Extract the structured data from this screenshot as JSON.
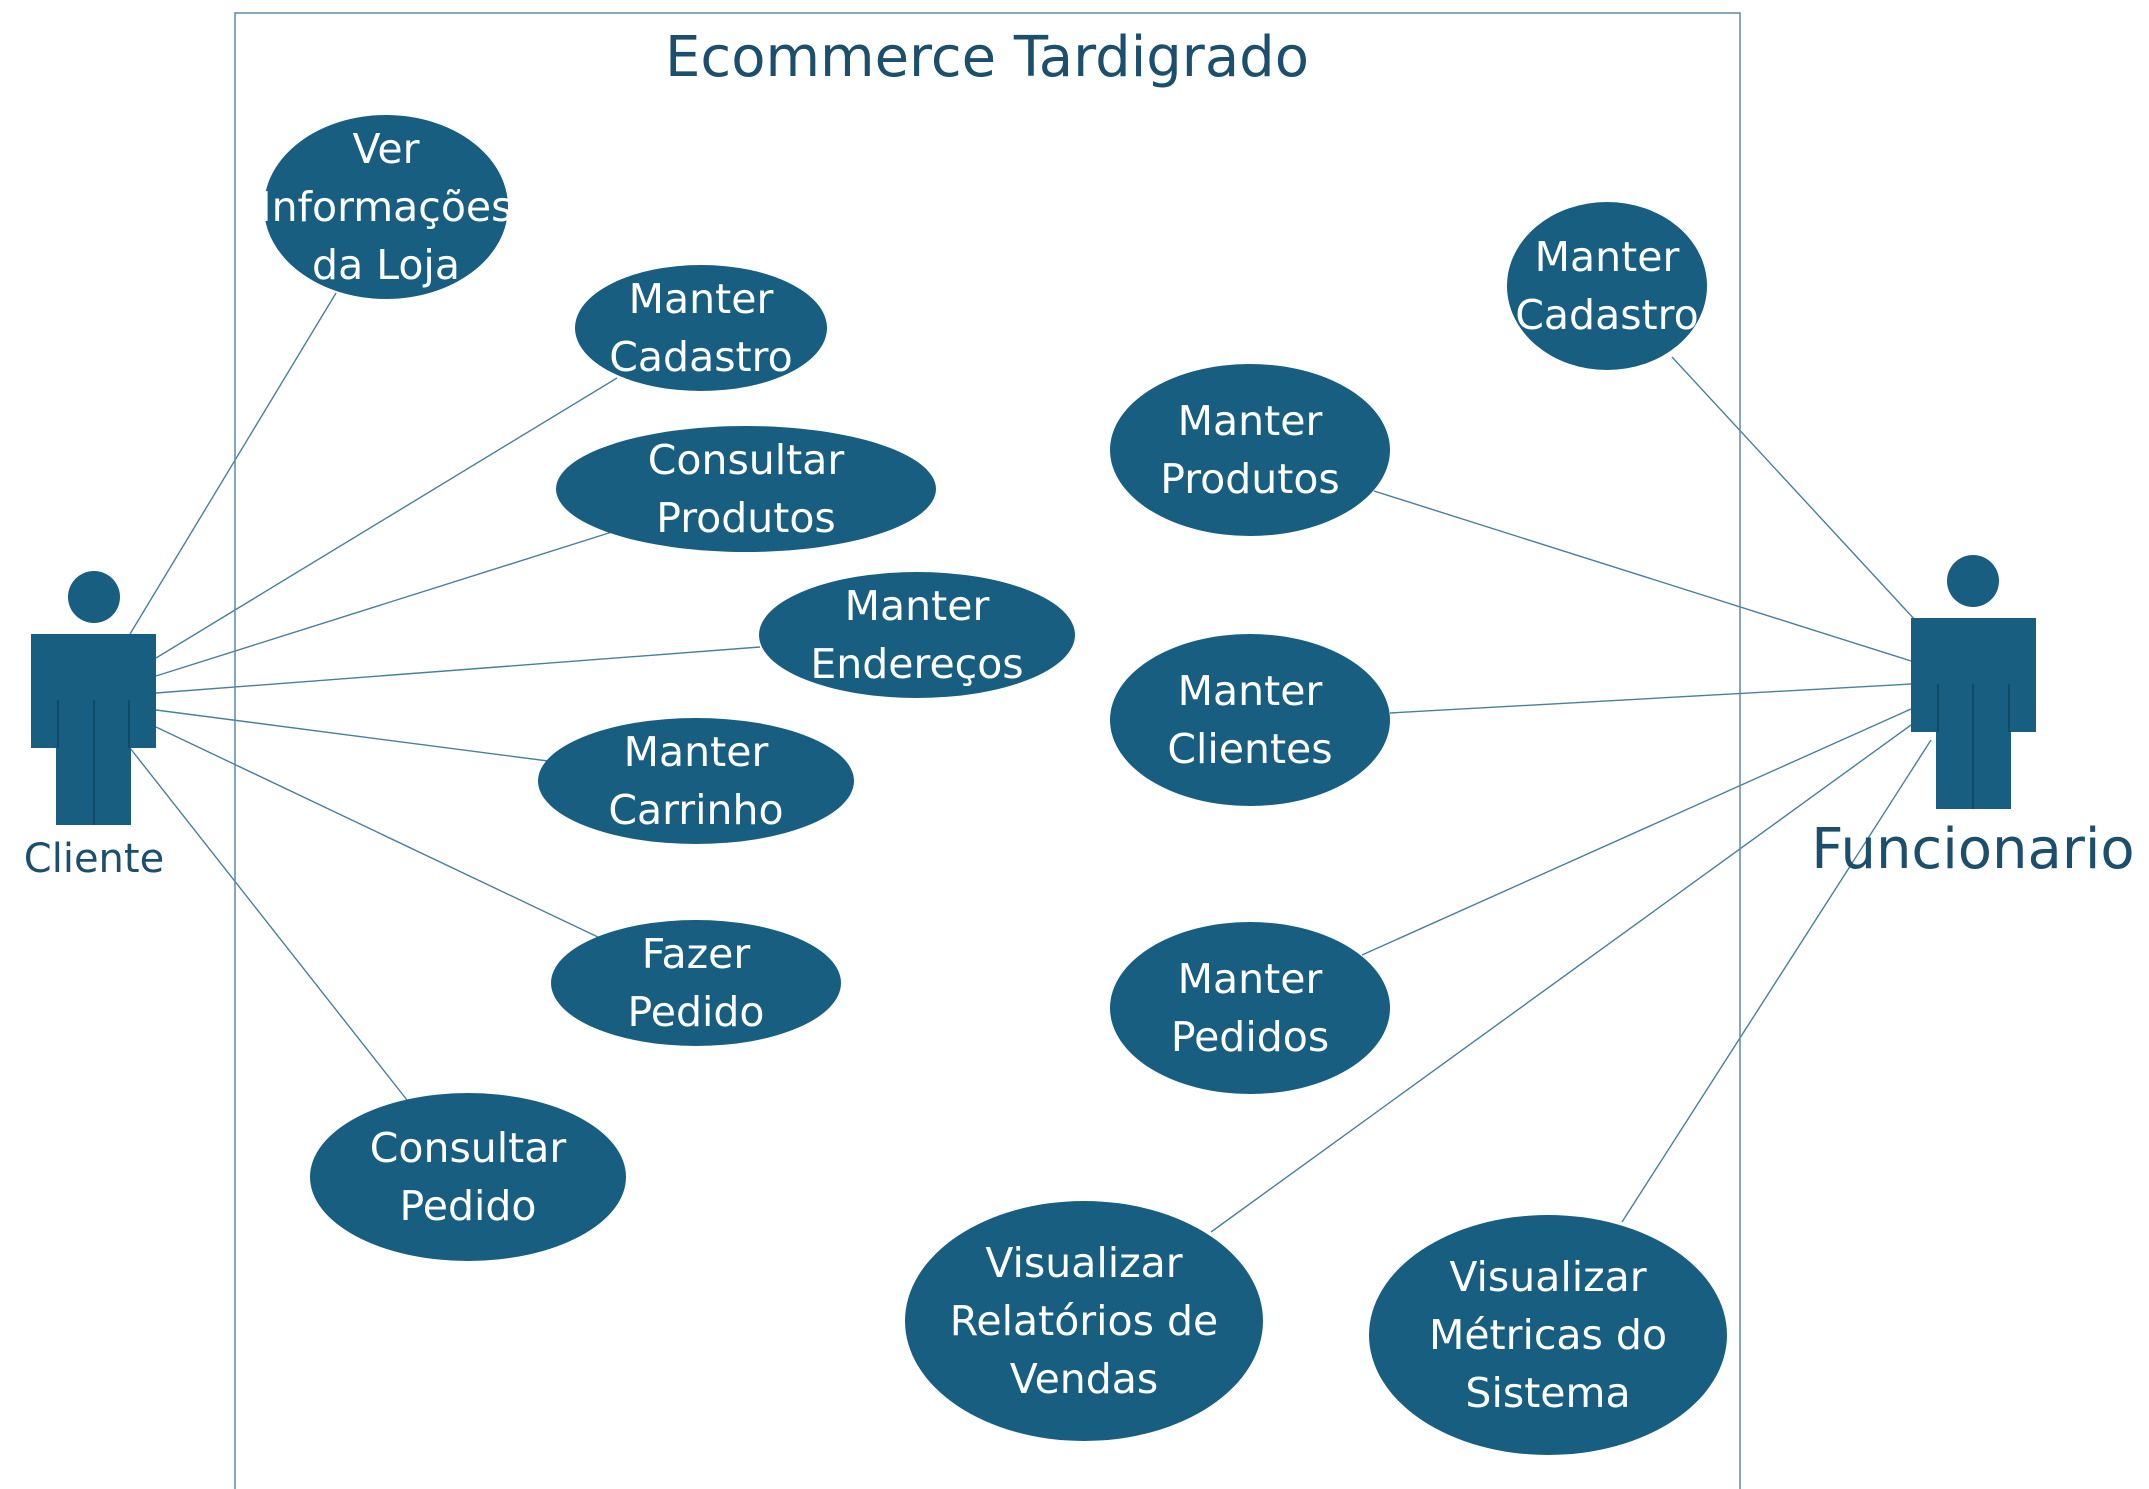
{
  "colors": {
    "fill": "#185e80",
    "line": "#4a7f9c",
    "text": "#1b4f6b",
    "boundary": "#5b8aa5"
  },
  "system": {
    "title": "Ecommerce Tardigrado"
  },
  "actors": {
    "cliente": {
      "label": "Cliente"
    },
    "funcionario": {
      "label": "Funcionario"
    }
  },
  "use_cases": [
    {
      "id": "ver-informacoes-da-loja",
      "actor": "cliente",
      "lines": [
        "Ver",
        "Informações",
        "da Loja"
      ]
    },
    {
      "id": "cliente-manter-cadastro",
      "actor": "cliente",
      "lines": [
        "Manter",
        "Cadastro"
      ]
    },
    {
      "id": "consultar-produtos",
      "actor": "cliente",
      "lines": [
        "Consultar",
        "Produtos"
      ]
    },
    {
      "id": "manter-enderecos",
      "actor": "cliente",
      "lines": [
        "Manter",
        "Endereços"
      ]
    },
    {
      "id": "manter-carrinho",
      "actor": "cliente",
      "lines": [
        "Manter",
        "Carrinho"
      ]
    },
    {
      "id": "fazer-pedido",
      "actor": "cliente",
      "lines": [
        "Fazer",
        "Pedido"
      ]
    },
    {
      "id": "consultar-pedido",
      "actor": "cliente",
      "lines": [
        "Consultar",
        "Pedido"
      ]
    },
    {
      "id": "funcionario-manter-cadastro",
      "actor": "funcionario",
      "lines": [
        "Manter",
        "Cadastro"
      ]
    },
    {
      "id": "manter-produtos",
      "actor": "funcionario",
      "lines": [
        "Manter",
        "Produtos"
      ]
    },
    {
      "id": "manter-clientes",
      "actor": "funcionario",
      "lines": [
        "Manter",
        "Clientes"
      ]
    },
    {
      "id": "manter-pedidos",
      "actor": "funcionario",
      "lines": [
        "Manter",
        "Pedidos"
      ]
    },
    {
      "id": "visualizar-relatorios-de-vendas",
      "actor": "funcionario",
      "lines": [
        "Visualizar",
        "Relatórios de",
        "Vendas"
      ]
    },
    {
      "id": "visualizar-metricas-do-sistema",
      "actor": "funcionario",
      "lines": [
        "Visualizar",
        "Métricas do",
        "Sistema"
      ]
    }
  ]
}
